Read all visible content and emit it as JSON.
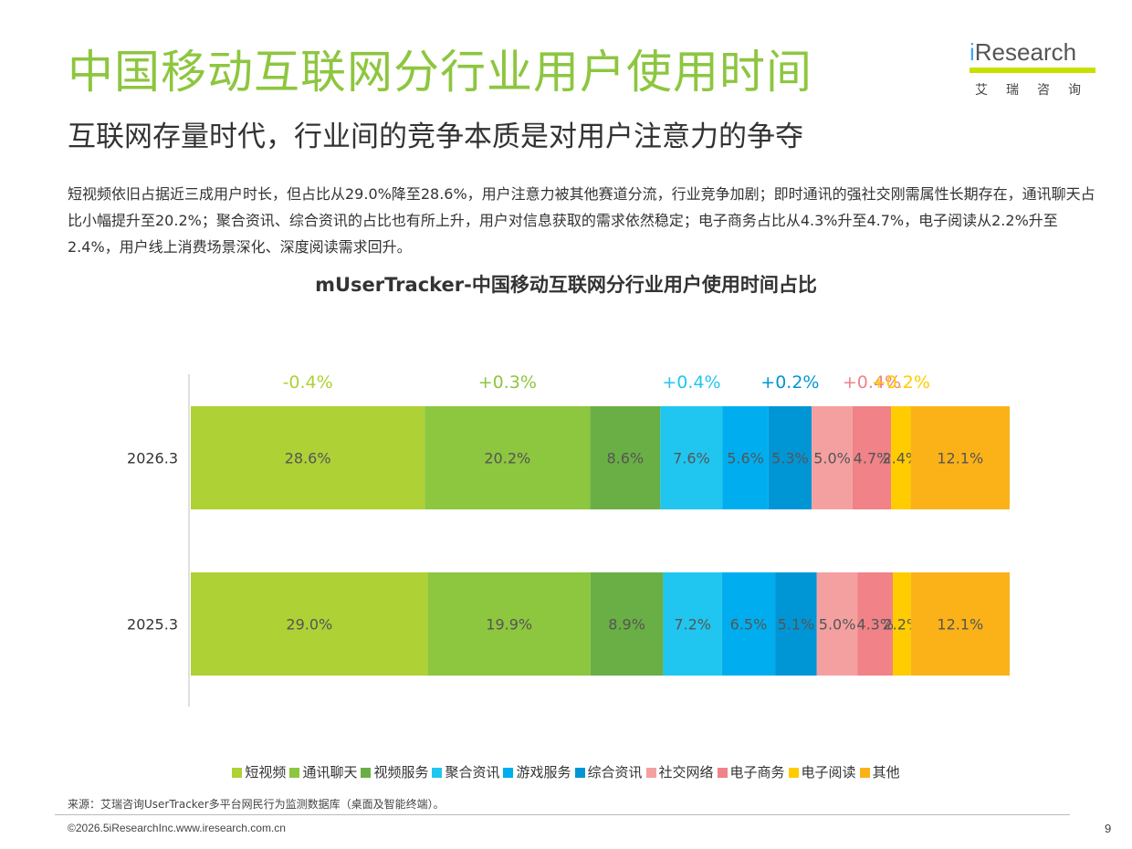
{
  "header": {
    "title": "中国移动互联网分行业用户使用时间",
    "subtitle": "互联网存量时代，行业间的竞争本质是对用户注意力的争夺",
    "description": "短视频依旧占据近三成用户时长，但占比从29.0%降至28.6%，用户注意力被其他赛道分流，行业竞争加剧；即时通讯的强社交刚需属性长期存在，通讯聊天占比小幅提升至20.2%；聚合资讯、综合资讯的占比也有所上升，用户对信息获取的需求依然稳定；电子商务占比从4.3%升至4.7%，电子阅读从2.2%升至2.4%，用户线上消费场景深化、深度阅读需求回升。"
  },
  "logo": {
    "prefix": "i",
    "word": "Research",
    "cn": "艾瑞咨询"
  },
  "chart_data": {
    "type": "bar",
    "orientation": "horizontal",
    "stacked": "100%",
    "title": "mUserTracker-中国移动互联网分行业用户使用时间占比",
    "categories": [
      "2026.3",
      "2025.3"
    ],
    "series": [
      {
        "name": "短视频",
        "color": "#aed136",
        "values": [
          28.6,
          29.0
        ],
        "labels": [
          "28.6%",
          "29.0%"
        ],
        "change": "-0.4%",
        "change_color": "#aed136"
      },
      {
        "name": "通讯聊天",
        "color": "#8dc63f",
        "values": [
          20.2,
          19.9
        ],
        "labels": [
          "20.2%",
          "19.9%"
        ],
        "change": "+0.3%",
        "change_color": "#8dc63f"
      },
      {
        "name": "视频服务",
        "color": "#6aaf45",
        "values": [
          8.6,
          8.9
        ],
        "labels": [
          "8.6%",
          "8.9%"
        ],
        "change": "",
        "change_color": ""
      },
      {
        "name": "聚合资讯",
        "color": "#20c6f0",
        "values": [
          7.6,
          7.2
        ],
        "labels": [
          "7.6%",
          "7.2%"
        ],
        "change": "+0.4%",
        "change_color": "#20c6f0"
      },
      {
        "name": "游戏服务",
        "color": "#00aeef",
        "values": [
          5.6,
          6.5
        ],
        "labels": [
          "5.6%",
          "6.5%"
        ],
        "change": "",
        "change_color": ""
      },
      {
        "name": "综合资讯",
        "color": "#0096d6",
        "values": [
          5.3,
          5.1
        ],
        "labels": [
          "5.3%",
          "5.1%"
        ],
        "change": "+0.2%",
        "change_color": "#0096d6"
      },
      {
        "name": "社交网络",
        "color": "#f5a0a0",
        "values": [
          5.0,
          5.0
        ],
        "labels": [
          "5.0%",
          "5.0%"
        ],
        "change": "",
        "change_color": ""
      },
      {
        "name": "电子商务",
        "color": "#f08288",
        "values": [
          4.7,
          4.3
        ],
        "labels": [
          "4.7%",
          "4.3%"
        ],
        "change": "+0.4%",
        "change_color": "#f08288"
      },
      {
        "name": "电子阅读",
        "color": "#ffcc00",
        "values": [
          2.4,
          2.2
        ],
        "labels": [
          "2.4%",
          "2.2%"
        ],
        "change": "+0.2%",
        "change_color": "#ffcc00"
      },
      {
        "name": "其他",
        "color": "#fbb219",
        "values": [
          12.1,
          12.1
        ],
        "labels": [
          "12.1%",
          "12.1%"
        ],
        "change": "",
        "change_color": ""
      }
    ],
    "legend_position": "bottom",
    "grid": false
  },
  "footer": {
    "source": "来源：艾瑞咨询UserTracker多平台网民行为监测数据库（桌面及智能终端）。",
    "copyright": "©2026.5iResearchInc.www.iresearch.com.cn",
    "page_number": "9"
  }
}
